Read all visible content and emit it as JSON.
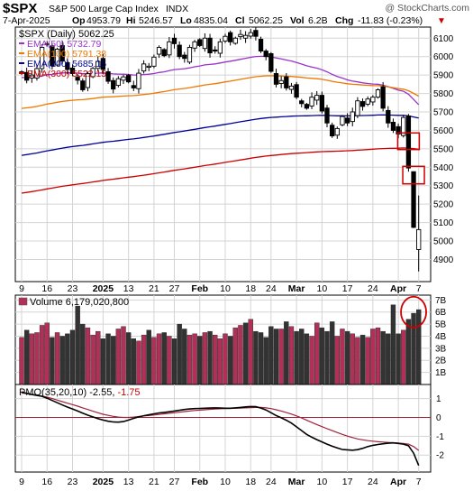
{
  "header": {
    "symbol": "$SPX",
    "name": "S&P 500 Large Cap Index",
    "exchange": "INDX",
    "watermark": "@ StockCharts.com",
    "date": "7-Apr-2025",
    "open_label": "Op",
    "open": "4953.79",
    "high_label": "Hi",
    "high": "5246.57",
    "low_label": "Lo",
    "low": "4835.04",
    "close_label": "Cl",
    "close": "5062.25",
    "volume_label": "Vol",
    "volume": "6.2B",
    "change_label": "Chg",
    "change": "-11.83 (-0.23%)",
    "change_arrow": "▼"
  },
  "colors": {
    "up_candle": "#ffffff",
    "down_candle": "#000000",
    "ema50": "#9933cc",
    "ema100": "#f07800",
    "ema200": "#000099",
    "ema300": "#cc0000",
    "vol_up": "#b03058",
    "vol_down": "#333333",
    "pmo": "#000000",
    "pmo_signal": "#a0223a",
    "highlight": "#cc0000",
    "grid": "#d4d4d4"
  },
  "chart_data": [
    {
      "type": "candlestick",
      "panel": "price",
      "title": "$SPX (Daily) 5062.25",
      "legend": [
        {
          "name": "EMA(50)",
          "value": "5732.79",
          "color": "#9933cc"
        },
        {
          "name": "EMA(100)",
          "value": "5791.38",
          "color": "#f07800"
        },
        {
          "name": "EMA(200)",
          "value": "5685.15",
          "color": "#000099"
        },
        {
          "name": "EMA(300)",
          "value": "5522.15",
          "color": "#cc0000"
        }
      ],
      "ylim": [
        4780,
        6160
      ],
      "yticks": [
        4900,
        5000,
        5100,
        5200,
        5300,
        5400,
        5500,
        5600,
        5700,
        5800,
        5900,
        6000,
        6100
      ],
      "x_tick_labels": [
        {
          "i": 0,
          "label": "9"
        },
        {
          "i": 5,
          "label": "16"
        },
        {
          "i": 10,
          "label": "23"
        },
        {
          "i": 16,
          "label": "2025",
          "bold": true
        },
        {
          "i": 21,
          "label": "13"
        },
        {
          "i": 26,
          "label": "21"
        },
        {
          "i": 30,
          "label": "27"
        },
        {
          "i": 35,
          "label": "Feb",
          "bold": true
        },
        {
          "i": 40,
          "label": "10"
        },
        {
          "i": 45,
          "label": "18"
        },
        {
          "i": 49,
          "label": "24"
        },
        {
          "i": 54,
          "label": "Mar",
          "bold": true
        },
        {
          "i": 59,
          "label": "10"
        },
        {
          "i": 64,
          "label": "17"
        },
        {
          "i": 69,
          "label": "24"
        },
        {
          "i": 74,
          "label": "Apr",
          "bold": true
        },
        {
          "i": 78,
          "label": "7"
        }
      ],
      "closes": [
        5918,
        5872,
        5900,
        5935,
        6050,
        6070,
        5950,
        6040,
        5975,
        5930,
        5908,
        5872,
        5820,
        5907,
        5936,
        5974,
        5930,
        5866,
        5824,
        5880,
        5890,
        5863,
        5830,
        5910,
        5960,
        5948,
        5997,
        6050,
        6005,
        6080,
        6070,
        6000,
        5990,
        6050,
        6080,
        6060,
        6100,
        6020,
        6030,
        6080,
        6110,
        6080,
        6100,
        6120,
        6115,
        6130,
        6110,
        6030,
        6000,
        5920,
        5850,
        5870,
        5830,
        5840,
        5780,
        5745,
        5720,
        5780,
        5790,
        5705,
        5640,
        5570,
        5610,
        5675,
        5640,
        5700,
        5760,
        5730,
        5770,
        5780,
        5820,
        5720,
        5640,
        5600,
        5580,
        5670,
        5396,
        5074,
        5062
      ],
      "highlights": [
        {
          "type": "rect",
          "x_index": 76,
          "price_range": [
            5496,
            5586
          ]
        },
        {
          "type": "rect",
          "x_index": 77,
          "price_range": [
            5310,
            5405
          ]
        }
      ]
    },
    {
      "type": "bar",
      "panel": "volume",
      "title": "Volume 6,179,020,800",
      "ylim": [
        0,
        7.4
      ],
      "yticks": [
        "1B",
        "2B",
        "3B",
        "4B",
        "5B",
        "6B",
        "7B"
      ],
      "values_billions": [
        3.9,
        4.5,
        4.2,
        4.3,
        4.9,
        5.1,
        3.9,
        4.3,
        4.0,
        4.2,
        4.5,
        6.5,
        5.0,
        4.7,
        4.1,
        4.4,
        3.8,
        4.2,
        4.0,
        4.6,
        4.8,
        4.3,
        3.8,
        3.6,
        4.1,
        4.5,
        3.9,
        4.2,
        4.3,
        4.0,
        3.8,
        5.0,
        4.6,
        4.1,
        4.2,
        4.0,
        4.3,
        4.4,
        4.1,
        3.8,
        4.2,
        4.0,
        4.7,
        4.9,
        5.1,
        5.4,
        4.4,
        4.3,
        3.9,
        4.8,
        4.6,
        4.6,
        5.2,
        4.8,
        4.4,
        4.6,
        4.2,
        4.0,
        5.1,
        4.7,
        4.4,
        5.2,
        4.0,
        4.6,
        4.4,
        4.2,
        3.9,
        4.1,
        3.9,
        4.6,
        4.7,
        4.4,
        4.2,
        6.6,
        4.2,
        4.5,
        5.4,
        5.9,
        6.2
      ],
      "highlight_last_n": 3
    },
    {
      "type": "line",
      "panel": "pmo",
      "title": "PMO(35,20,10)",
      "value": "-2.55",
      "signal_value": "-1.75",
      "ylim": [
        -2.9,
        1.75
      ],
      "yticks": [
        1,
        0,
        -1,
        -2
      ],
      "zero_line": true,
      "series": [
        {
          "name": "PMO",
          "values": [
            1.35,
            1.28,
            1.22,
            1.17,
            1.12,
            1.02,
            0.9,
            0.78,
            0.66,
            0.55,
            0.45,
            0.34,
            0.23,
            0.12,
            0.03,
            -0.06,
            -0.14,
            -0.2,
            -0.24,
            -0.25,
            -0.22,
            -0.14,
            -0.05,
            0.03,
            0.09,
            0.14,
            0.19,
            0.24,
            0.27,
            0.3,
            0.34,
            0.38,
            0.42,
            0.45,
            0.47,
            0.48,
            0.49,
            0.5,
            0.51,
            0.5,
            0.49,
            0.49,
            0.51,
            0.53,
            0.56,
            0.58,
            0.57,
            0.5,
            0.4,
            0.25,
            0.1,
            -0.02,
            -0.15,
            -0.3,
            -0.5,
            -0.7,
            -0.9,
            -1.05,
            -1.18,
            -1.3,
            -1.42,
            -1.53,
            -1.62,
            -1.7,
            -1.72,
            -1.74,
            -1.71,
            -1.64,
            -1.55,
            -1.48,
            -1.44,
            -1.4,
            -1.37,
            -1.35,
            -1.38,
            -1.42,
            -1.5,
            -1.9,
            -2.55
          ]
        },
        {
          "name": "Signal",
          "values": [
            1.3,
            1.26,
            1.22,
            1.18,
            1.13,
            1.08,
            1.0,
            0.92,
            0.84,
            0.76,
            0.68,
            0.6,
            0.51,
            0.42,
            0.33,
            0.25,
            0.17,
            0.11,
            0.06,
            0.02,
            0.0,
            0.0,
            0.02,
            0.05,
            0.08,
            0.1,
            0.13,
            0.16,
            0.19,
            0.22,
            0.25,
            0.28,
            0.31,
            0.34,
            0.37,
            0.39,
            0.41,
            0.43,
            0.45,
            0.46,
            0.47,
            0.48,
            0.49,
            0.5,
            0.51,
            0.52,
            0.53,
            0.53,
            0.51,
            0.47,
            0.41,
            0.34,
            0.26,
            0.18,
            0.08,
            -0.03,
            -0.15,
            -0.27,
            -0.38,
            -0.49,
            -0.6,
            -0.7,
            -0.8,
            -0.9,
            -0.99,
            -1.07,
            -1.14,
            -1.19,
            -1.23,
            -1.26,
            -1.29,
            -1.31,
            -1.33,
            -1.34,
            -1.36,
            -1.38,
            -1.42,
            -1.55,
            -1.75
          ]
        }
      ]
    }
  ]
}
